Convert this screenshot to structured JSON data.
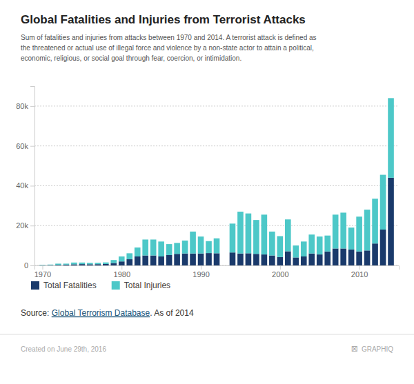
{
  "chart_data": {
    "type": "bar",
    "title": "Global Fatalities and Injuries from Terrorist Attacks",
    "subtitle": "Sum of fatalities and injuries from attacks between 1970 and 2014. A terrorist attack is defined as\nthe threatened or actual use of illegal force and violence by a non-state actor to attain a political,\neconomic, religious, or social goal through fear, coercion, or intimidation.",
    "annotations": [
      "Source: ",
      "Global Terrorism Database",
      ". As of 2014",
      "Created on June 29th, 2016",
      "⊠",
      "GRAPHIQ"
    ],
    "x": [
      1970,
      1971,
      1972,
      1973,
      1974,
      1975,
      1976,
      1977,
      1978,
      1979,
      1980,
      1981,
      1982,
      1983,
      1984,
      1985,
      1986,
      1987,
      1988,
      1989,
      1990,
      1991,
      1992,
      1993,
      1994,
      1995,
      1996,
      1997,
      1998,
      1999,
      2000,
      2001,
      2002,
      2003,
      2004,
      2005,
      2006,
      2007,
      2008,
      2009,
      2010,
      2011,
      2012,
      2013,
      2014
    ],
    "series": [
      {
        "name": "Total Fatalities",
        "color": "#1a3a6b",
        "values": [
          120,
          180,
          290,
          390,
          550,
          650,
          580,
          620,
          700,
          1200,
          2000,
          3100,
          4500,
          5000,
          5000,
          4500,
          5200,
          5800,
          6000,
          6000,
          6000,
          6200,
          6100,
          0,
          6500,
          6000,
          6100,
          5800,
          5500,
          5000,
          4200,
          7100,
          4000,
          4500,
          6000,
          5500,
          7000,
          8500,
          8500,
          8000,
          7000,
          7500,
          11000,
          18000,
          44000
        ]
      },
      {
        "name": "Total Injuries",
        "color": "#4dc8c8",
        "values": [
          200,
          250,
          600,
          500,
          900,
          800,
          700,
          700,
          800,
          1500,
          2500,
          3000,
          4500,
          8000,
          8000,
          7500,
          5500,
          5500,
          6500,
          11000,
          8500,
          6000,
          7500,
          0,
          14500,
          21000,
          20000,
          17000,
          20000,
          12000,
          10500,
          16000,
          6000,
          7500,
          9500,
          9000,
          8000,
          17000,
          18000,
          11000,
          17500,
          20500,
          22500,
          27500,
          40000
        ]
      }
    ],
    "stacked": true,
    "xlim": [
      1969,
      2015
    ],
    "xticks": [
      1970,
      1980,
      1990,
      2000,
      2010
    ],
    "ylim": [
      0,
      90000
    ],
    "yticks": [
      0,
      {
        "value": 20000,
        "label": "20k"
      },
      {
        "value": 40000,
        "label": "40k"
      },
      {
        "value": 60000,
        "label": "60k"
      },
      {
        "value": 80000,
        "label": "80k"
      }
    ],
    "grid": true,
    "legend": "bottom"
  }
}
